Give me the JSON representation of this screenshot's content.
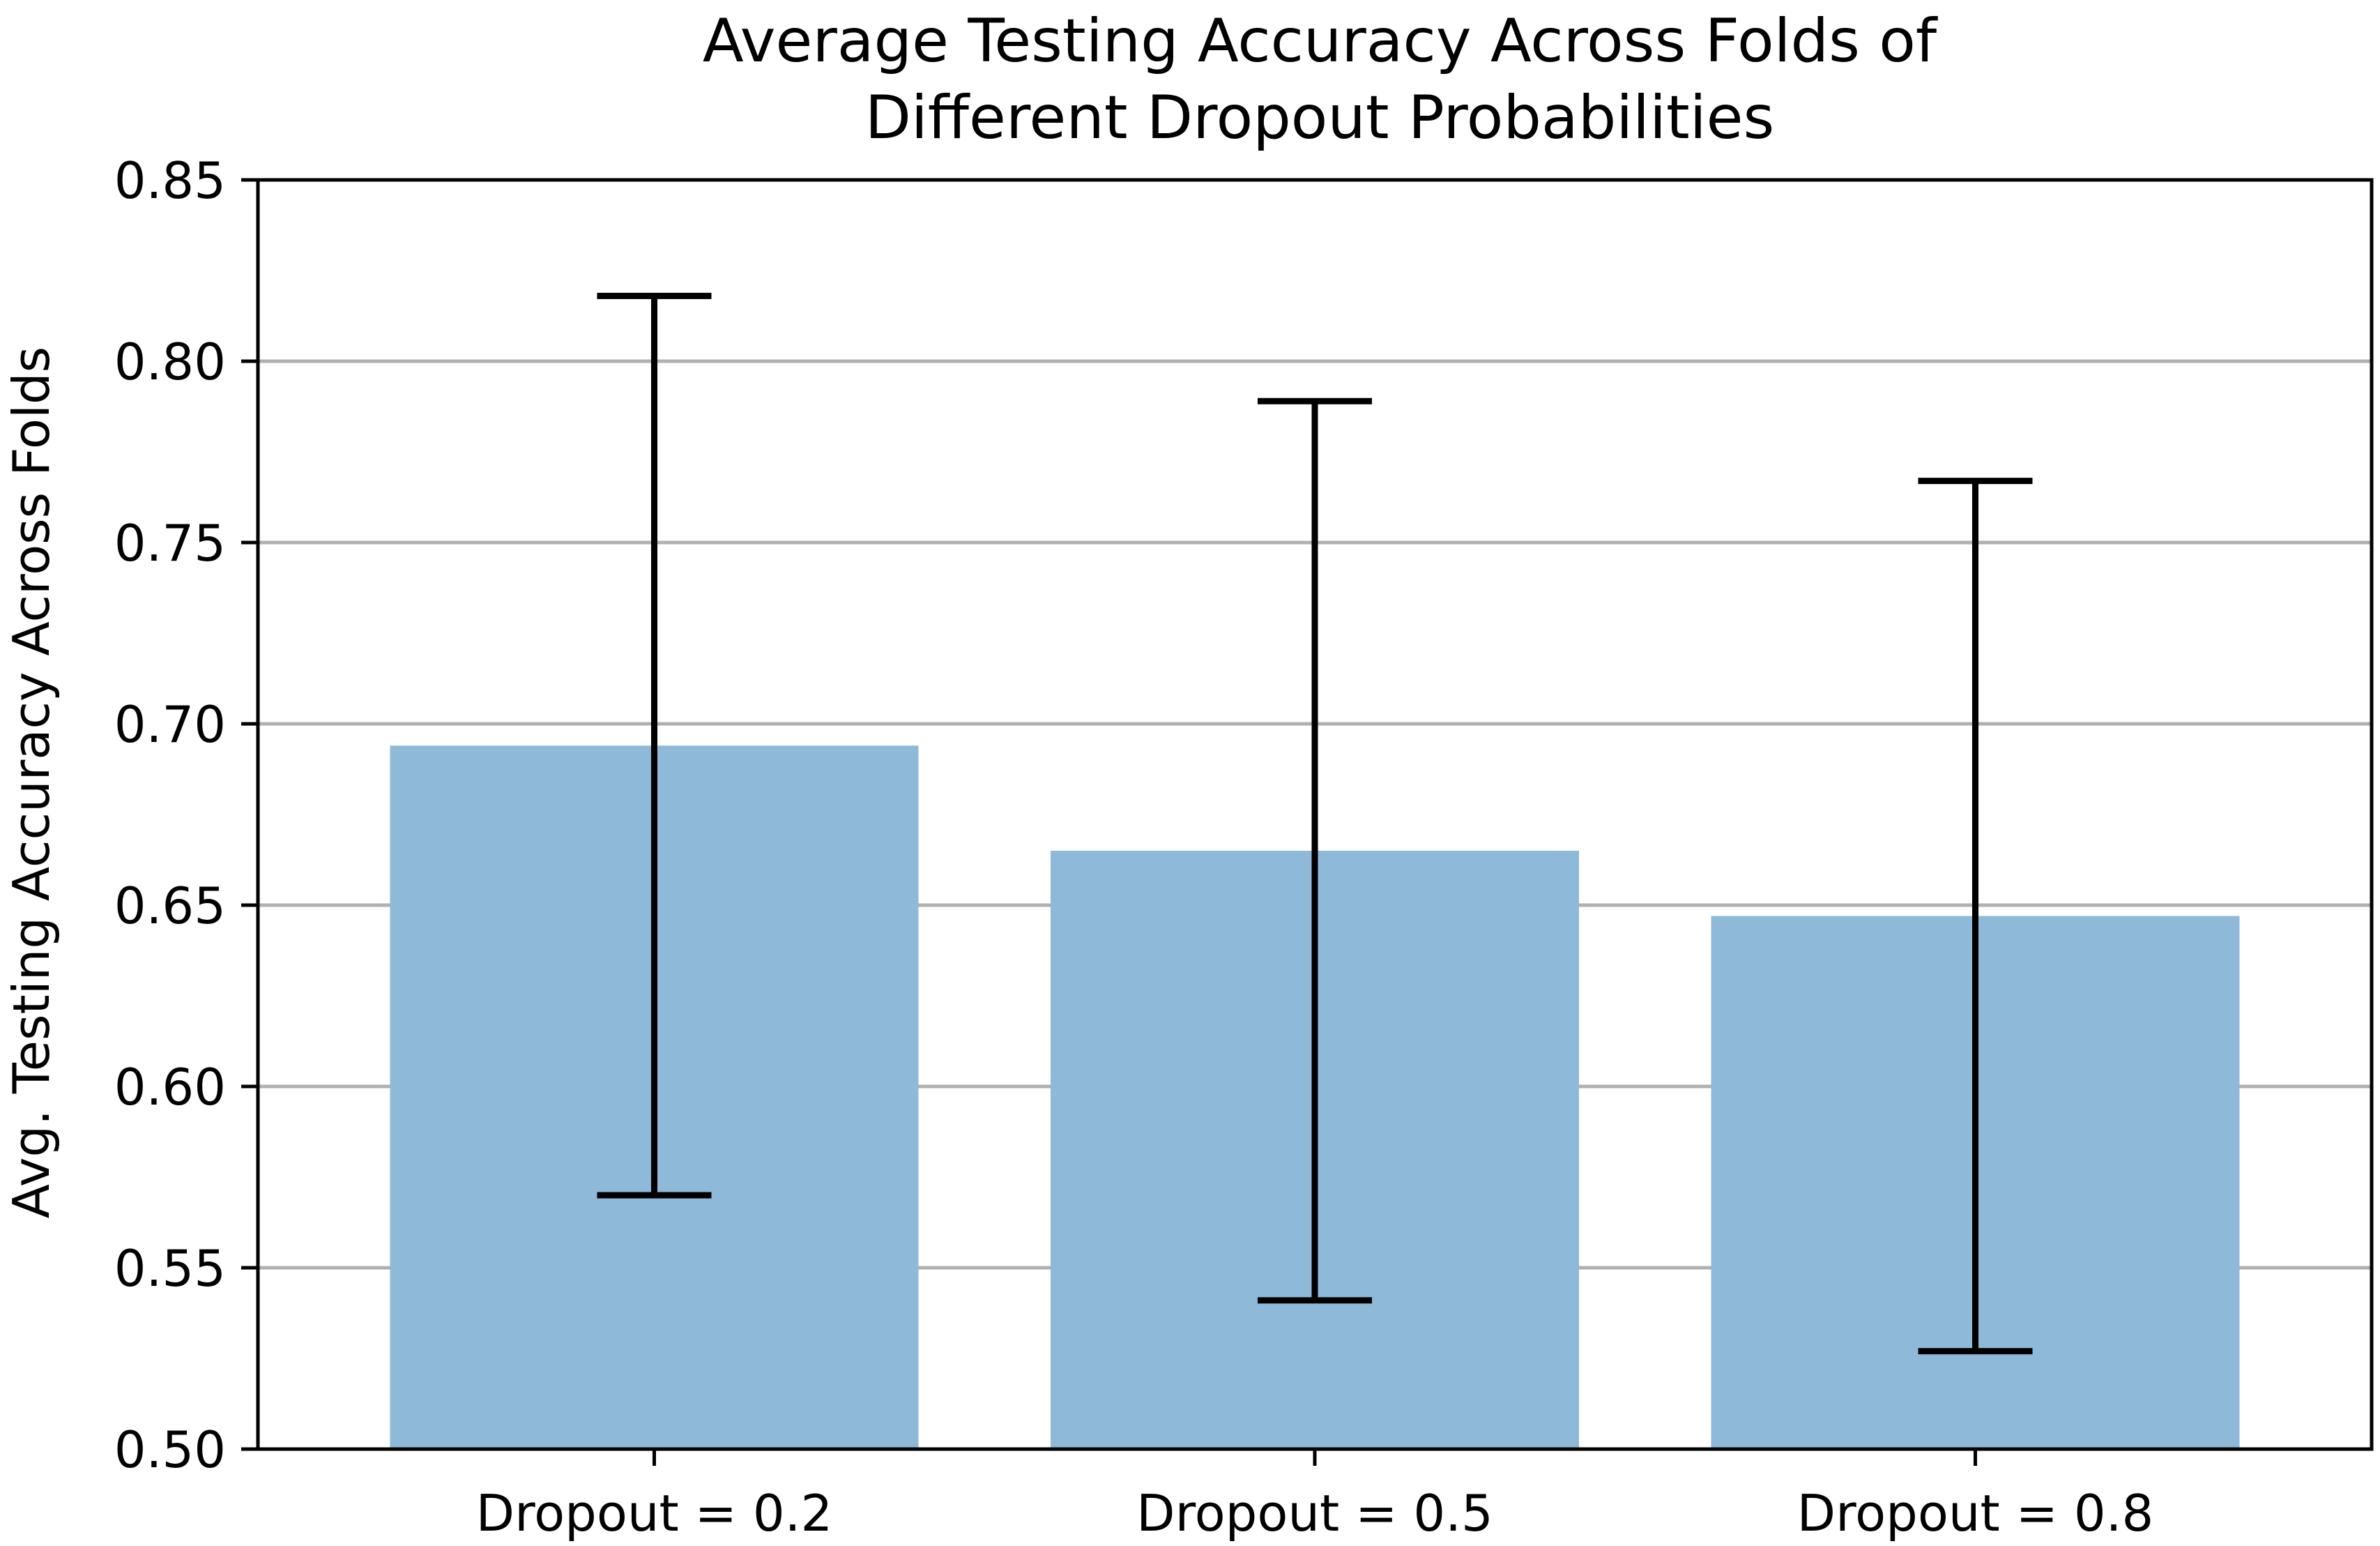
{
  "chart_data": {
    "type": "bar",
    "title_lines": [
      "Average Testing Accuracy Across Folds of",
      "Different Dropout Probabilities"
    ],
    "xlabel": "",
    "ylabel": "Avg. Testing Accuracy Across Folds",
    "categories": [
      "Dropout = 0.2",
      "Dropout = 0.5",
      "Dropout = 0.8"
    ],
    "values": [
      0.694,
      0.665,
      0.647
    ],
    "error_bars": [
      {
        "low": 0.57,
        "high": 0.818
      },
      {
        "low": 0.541,
        "high": 0.789
      },
      {
        "low": 0.527,
        "high": 0.767
      }
    ],
    "ylim": [
      0.5,
      0.85
    ],
    "yticks": [
      "0.50",
      "0.55",
      "0.60",
      "0.65",
      "0.70",
      "0.75",
      "0.80",
      "0.85"
    ],
    "grid": "horizontal",
    "legend": "none",
    "colors": {
      "bar": "#8fb9d9",
      "error_bar": "#000000",
      "grid": "#b0b0b0",
      "axis": "#000000"
    }
  }
}
